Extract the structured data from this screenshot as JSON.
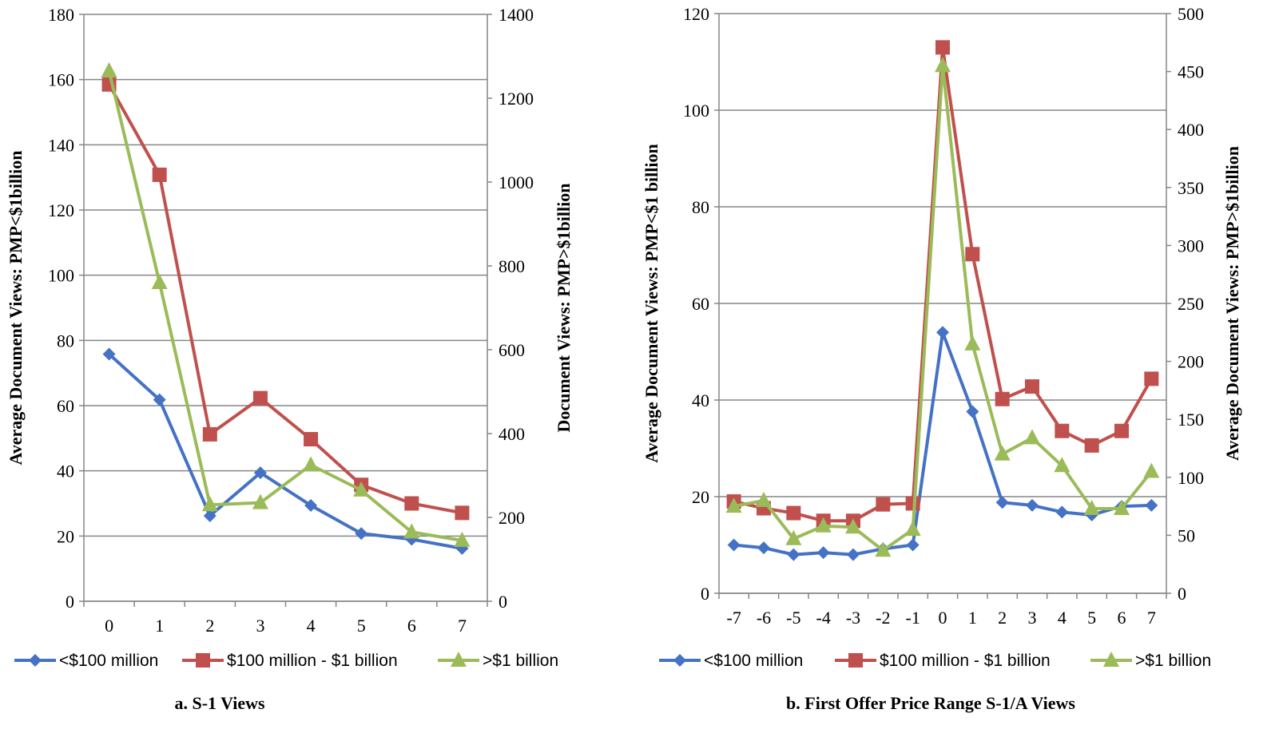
{
  "colors": {
    "small": "#4472C4",
    "mid": "#C0504D",
    "large": "#9BBB59",
    "grid": "#868686",
    "axis": "#868686"
  },
  "chart_data": [
    {
      "type": "line",
      "caption": "a. S-1 Views",
      "ylabel_left": "Average Document  Views: PMP<$1billion",
      "ylabel_right": "Document Views: PMP>$1billion",
      "x": [
        0,
        1,
        2,
        3,
        4,
        5,
        6,
        7
      ],
      "x_tick_labels": [
        "0",
        "1",
        "2",
        "3",
        "4",
        "5",
        "6",
        "7"
      ],
      "ylim_left": [
        0,
        180
      ],
      "yticks_left": [
        "0",
        "20",
        "40",
        "60",
        "80",
        "100",
        "120",
        "140",
        "160",
        "180"
      ],
      "ylim_right": [
        0,
        1400
      ],
      "yticks_right": [
        "0",
        "200",
        "400",
        "600",
        "800",
        "1000",
        "1200",
        "1400"
      ],
      "grid": "horizontal",
      "legend": "bottom",
      "series": [
        {
          "name": "<$100 million",
          "axis": "left",
          "marker": "diamond",
          "color_key": "small",
          "values": [
            75.8,
            61.8,
            26.2,
            39.4,
            29.4,
            20.8,
            19.0,
            16.2
          ]
        },
        {
          "name": "$100 million - $1 billion",
          "axis": "left",
          "marker": "square",
          "color_key": "mid",
          "values": [
            158.5,
            130.8,
            51.2,
            62.3,
            49.7,
            35.7,
            30.0,
            27.1
          ]
        },
        {
          "name": ">$1 billion",
          "axis": "right",
          "marker": "triangle",
          "color_key": "large",
          "values": [
            1265,
            760,
            230,
            235,
            325,
            265,
            165,
            145
          ]
        }
      ]
    },
    {
      "type": "line",
      "caption": "b. First Offer Price Range S-1/A Views",
      "ylabel_left": "Average Document  Views: PMP<$1 billion",
      "ylabel_right": "Average Document  Views: PMP>$1billion",
      "x": [
        -7,
        -6,
        -5,
        -4,
        -3,
        -2,
        -1,
        0,
        1,
        2,
        3,
        4,
        5,
        6,
        7
      ],
      "x_tick_labels": [
        "-7",
        "-6",
        "-5",
        "-4",
        "-3",
        "-2",
        "-1",
        "0",
        "1",
        "2",
        "3",
        "4",
        "5",
        "6",
        "7"
      ],
      "ylim_left": [
        0,
        120
      ],
      "yticks_left": [
        "0",
        "20",
        "40",
        "60",
        "80",
        "100",
        "120"
      ],
      "ylim_right": [
        0,
        500
      ],
      "yticks_right": [
        "0",
        "50",
        "100",
        "150",
        "200",
        "250",
        "300",
        "350",
        "400",
        "450",
        "500"
      ],
      "grid": "horizontal",
      "legend": "bottom",
      "series": [
        {
          "name": "<$100 million",
          "axis": "left",
          "marker": "diamond",
          "color_key": "small",
          "values": [
            10.0,
            9.4,
            8.0,
            8.4,
            8.0,
            9.2,
            10.0,
            54.0,
            37.6,
            18.8,
            18.2,
            16.8,
            16.2,
            18.0,
            18.2
          ]
        },
        {
          "name": "$100 million - $1 billion",
          "axis": "left",
          "marker": "square",
          "color_key": "mid",
          "values": [
            19.0,
            17.6,
            16.6,
            15.0,
            15.0,
            18.4,
            18.6,
            113.0,
            70.2,
            40.2,
            42.8,
            33.6,
            30.6,
            33.6,
            44.4
          ]
        },
        {
          "name": ">$1 billion",
          "axis": "right",
          "marker": "triangle",
          "color_key": "large",
          "values": [
            75,
            80,
            47,
            58,
            57,
            37,
            55,
            455,
            215,
            120,
            134,
            110,
            73,
            73,
            105
          ]
        }
      ]
    }
  ]
}
